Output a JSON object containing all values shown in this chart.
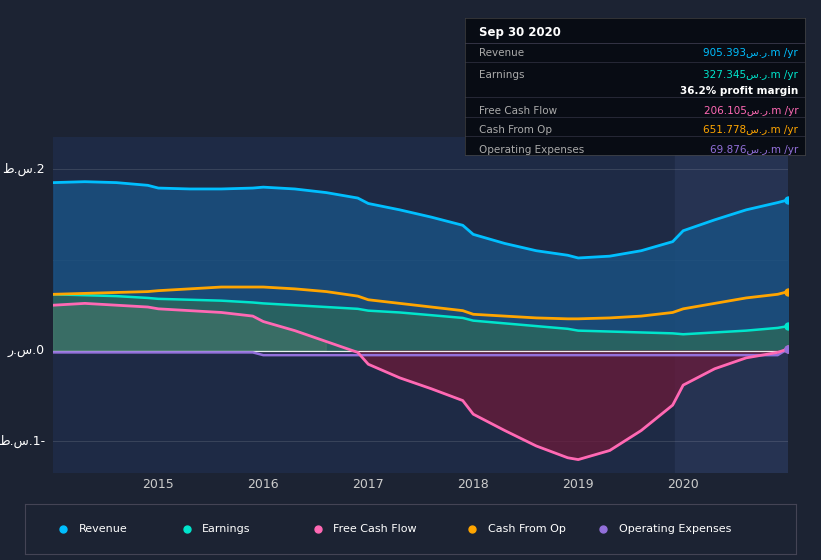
{
  "bg_color": "#1c2333",
  "plot_bg_color": "#1e2a45",
  "highlight_color": "#263352",
  "title_box": {
    "date": "Sep 30 2020",
    "rows": [
      {
        "label": "Revenue",
        "value": "905.393س.ر.m /yr",
        "color": "#00bfff"
      },
      {
        "label": "Earnings",
        "value": "327.345س.ر.m /yr",
        "color": "#00e5cc"
      },
      {
        "label": "",
        "value": "36.2% profit margin",
        "color": "#ffffff"
      },
      {
        "label": "Free Cash Flow",
        "value": "206.105س.ر.m /yr",
        "color": "#ff69b4"
      },
      {
        "label": "Cash From Op",
        "value": "651.778س.ر.m /yr",
        "color": "#ffa500"
      },
      {
        "label": "Operating Expenses",
        "value": "69.876س.ر.m /yr",
        "color": "#9370db"
      }
    ]
  },
  "ylabel_2b": "ط.س.2",
  "ylabel_0": "ر.س.0",
  "ylabel_n1b": "ط.س.1-",
  "x_years": [
    2014.0,
    2014.3,
    2014.6,
    2014.9,
    2015.0,
    2015.3,
    2015.6,
    2015.9,
    2016.0,
    2016.3,
    2016.6,
    2016.9,
    2017.0,
    2017.3,
    2017.6,
    2017.9,
    2018.0,
    2018.3,
    2018.6,
    2018.9,
    2019.0,
    2019.3,
    2019.6,
    2019.9,
    2020.0,
    2020.3,
    2020.6,
    2020.9,
    2021.0
  ],
  "revenue": [
    1.85,
    1.86,
    1.85,
    1.82,
    1.79,
    1.78,
    1.78,
    1.79,
    1.8,
    1.78,
    1.74,
    1.68,
    1.62,
    1.55,
    1.47,
    1.38,
    1.28,
    1.18,
    1.1,
    1.05,
    1.02,
    1.04,
    1.1,
    1.2,
    1.32,
    1.44,
    1.55,
    1.63,
    1.66
  ],
  "earnings": [
    0.62,
    0.61,
    0.6,
    0.58,
    0.57,
    0.56,
    0.55,
    0.53,
    0.52,
    0.5,
    0.48,
    0.46,
    0.44,
    0.42,
    0.39,
    0.36,
    0.33,
    0.3,
    0.27,
    0.24,
    0.22,
    0.21,
    0.2,
    0.19,
    0.18,
    0.2,
    0.22,
    0.25,
    0.27
  ],
  "free_cash_flow": [
    0.5,
    0.52,
    0.5,
    0.48,
    0.46,
    0.44,
    0.42,
    0.38,
    0.32,
    0.22,
    0.1,
    -0.02,
    -0.15,
    -0.3,
    -0.42,
    -0.55,
    -0.7,
    -0.88,
    -1.05,
    -1.18,
    -1.2,
    -1.1,
    -0.88,
    -0.6,
    -0.38,
    -0.2,
    -0.08,
    -0.02,
    0.02
  ],
  "cash_from_op": [
    0.62,
    0.63,
    0.64,
    0.65,
    0.66,
    0.68,
    0.7,
    0.7,
    0.7,
    0.68,
    0.65,
    0.6,
    0.56,
    0.52,
    0.48,
    0.44,
    0.4,
    0.38,
    0.36,
    0.35,
    0.35,
    0.36,
    0.38,
    0.42,
    0.46,
    0.52,
    0.58,
    0.62,
    0.65
  ],
  "operating_expenses": [
    -0.02,
    -0.02,
    -0.02,
    -0.02,
    -0.02,
    -0.02,
    -0.02,
    -0.02,
    -0.05,
    -0.05,
    -0.05,
    -0.05,
    -0.05,
    -0.05,
    -0.05,
    -0.05,
    -0.05,
    -0.05,
    -0.05,
    -0.05,
    -0.05,
    -0.05,
    -0.05,
    -0.05,
    -0.05,
    -0.05,
    -0.05,
    -0.05,
    0.02
  ],
  "legend_items": [
    {
      "label": "Revenue",
      "color": "#00bfff"
    },
    {
      "label": "Earnings",
      "color": "#00e5cc"
    },
    {
      "label": "Free Cash Flow",
      "color": "#ff69b4"
    },
    {
      "label": "Cash From Op",
      "color": "#ffa500"
    },
    {
      "label": "Operating Expenses",
      "color": "#9370db"
    }
  ]
}
